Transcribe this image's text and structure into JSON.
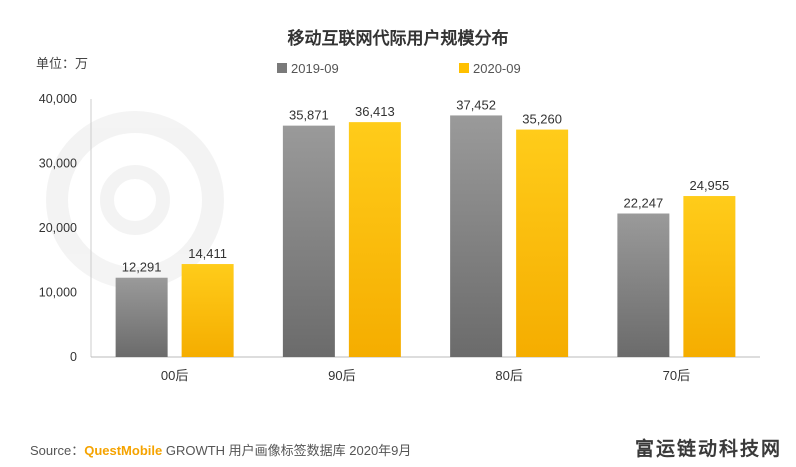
{
  "chart_data": {
    "type": "bar",
    "title": "移动互联网代际用户规模分布",
    "unit_label": "单位：万",
    "categories": [
      "00后",
      "90后",
      "80后",
      "70后"
    ],
    "series": [
      {
        "name": "2019-09",
        "color": "#7a7a7a",
        "values": [
          12291,
          35871,
          37452,
          22247
        ],
        "labels": [
          "12,291",
          "35,871",
          "37,452",
          "22,247"
        ]
      },
      {
        "name": "2020-09",
        "color": "#ffc000",
        "values": [
          14411,
          36413,
          35260,
          24955
        ],
        "labels": [
          "14,411",
          "36,413",
          "35,260",
          "24,955"
        ]
      }
    ],
    "ylim": [
      0,
      40000
    ],
    "yticks": [
      0,
      10000,
      20000,
      30000,
      40000
    ],
    "ytick_labels": [
      "0",
      "10,000",
      "20,000",
      "30,000",
      "40,000"
    ],
    "grid": false,
    "legend_position": "top-center"
  },
  "source": {
    "prefix": "Source：",
    "brand": "QuestMobile",
    "rest": " GROWTH 用户画像标签数据库 2020年9月"
  },
  "watermark": "富运链动科技网"
}
